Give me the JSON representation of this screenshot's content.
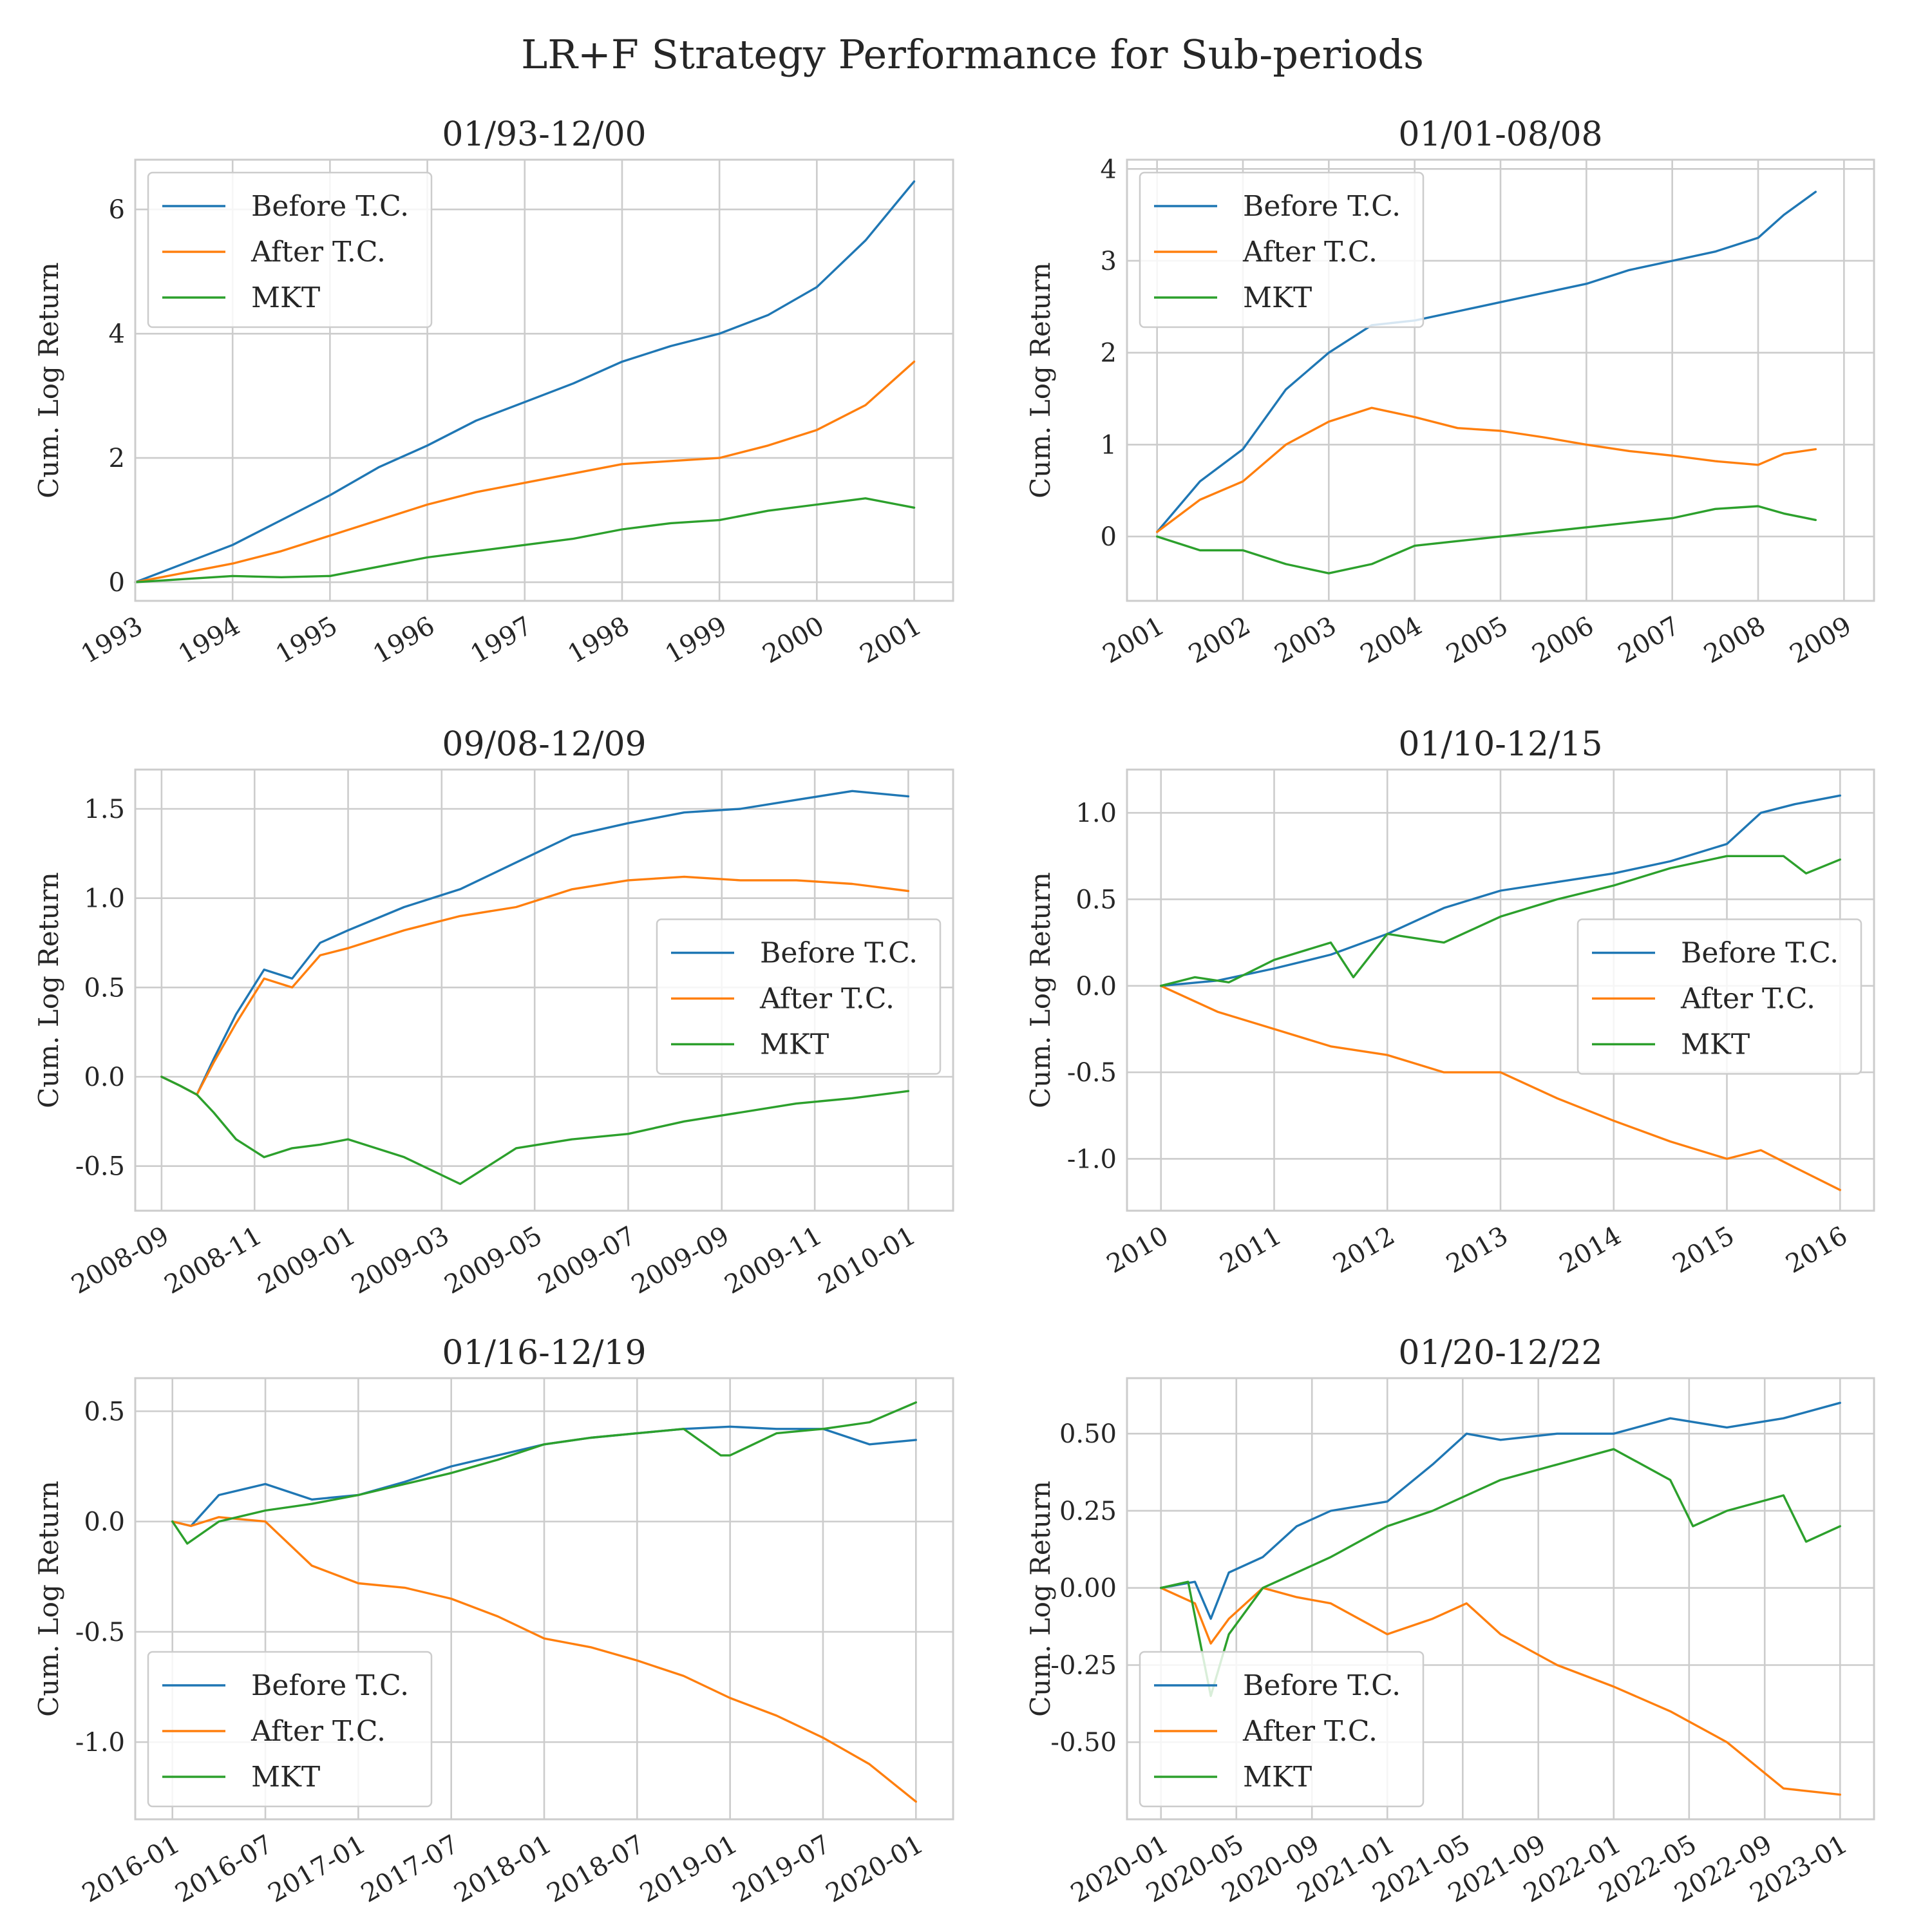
{
  "figure": {
    "title": "LR+F Strategy Performance for Sub-periods"
  },
  "colors": {
    "Before T.C.": "#1f77b4",
    "After T.C.": "#ff7f0e",
    "MKT": "#2ca02c"
  },
  "chart_data": [
    {
      "type": "line",
      "title": "01/93-12/00",
      "ylabel": "Cum. Log Return",
      "xlabel": "",
      "xlim": [
        1993.0,
        2001.4
      ],
      "ylim": [
        -0.3,
        6.8
      ],
      "xticks": [
        1993,
        1994,
        1995,
        1996,
        1997,
        1998,
        1999,
        2000,
        2001
      ],
      "xtick_labels": [
        "1993",
        "1994",
        "1995",
        "1996",
        "1997",
        "1998",
        "1999",
        "2000",
        "2001"
      ],
      "yticks": [
        0,
        2,
        4,
        6
      ],
      "ytick_labels": [
        "0",
        "2",
        "4",
        "6"
      ],
      "grid": true,
      "legend": {
        "loc": "upper-left",
        "labels": [
          "Before T.C.",
          "After T.C.",
          "MKT"
        ]
      },
      "series": [
        {
          "name": "Before T.C.",
          "x": [
            1993.0,
            1993.5,
            1994.0,
            1994.5,
            1995.0,
            1995.5,
            1996.0,
            1996.5,
            1997.0,
            1997.5,
            1998.0,
            1998.5,
            1999.0,
            1999.5,
            2000.0,
            2000.5,
            2001.0
          ],
          "y": [
            0.0,
            0.3,
            0.6,
            1.0,
            1.4,
            1.85,
            2.2,
            2.6,
            2.9,
            3.2,
            3.55,
            3.8,
            4.0,
            4.3,
            4.75,
            5.5,
            6.45
          ]
        },
        {
          "name": "After T.C.",
          "x": [
            1993.0,
            1993.5,
            1994.0,
            1994.5,
            1995.0,
            1995.5,
            1996.0,
            1996.5,
            1997.0,
            1997.5,
            1998.0,
            1998.5,
            1999.0,
            1999.5,
            2000.0,
            2000.5,
            2001.0
          ],
          "y": [
            0.0,
            0.15,
            0.3,
            0.5,
            0.75,
            1.0,
            1.25,
            1.45,
            1.6,
            1.75,
            1.9,
            1.95,
            2.0,
            2.2,
            2.45,
            2.85,
            3.55
          ]
        },
        {
          "name": "MKT",
          "x": [
            1993.0,
            1993.5,
            1994.0,
            1994.5,
            1995.0,
            1995.5,
            1996.0,
            1996.5,
            1997.0,
            1997.5,
            1998.0,
            1998.5,
            1999.0,
            1999.5,
            2000.0,
            2000.5,
            2001.0
          ],
          "y": [
            0.0,
            0.05,
            0.1,
            0.08,
            0.1,
            0.25,
            0.4,
            0.5,
            0.6,
            0.7,
            0.85,
            0.95,
            1.0,
            1.15,
            1.25,
            1.35,
            1.2
          ]
        }
      ]
    },
    {
      "type": "line",
      "title": "01/01-08/08",
      "ylabel": "Cum. Log Return",
      "xlabel": "",
      "xlim": [
        2000.65,
        2009.35
      ],
      "ylim": [
        -0.7,
        4.1
      ],
      "xticks": [
        2001,
        2002,
        2003,
        2004,
        2005,
        2006,
        2007,
        2008,
        2009
      ],
      "xtick_labels": [
        "2001",
        "2002",
        "2003",
        "2004",
        "2005",
        "2006",
        "2007",
        "2008",
        "2009"
      ],
      "yticks": [
        0,
        1,
        2,
        3,
        4
      ],
      "ytick_labels": [
        "0",
        "1",
        "2",
        "3",
        "4"
      ],
      "grid": true,
      "legend": {
        "loc": "upper-left",
        "labels": [
          "Before T.C.",
          "After T.C.",
          "MKT"
        ]
      },
      "series": [
        {
          "name": "Before T.C.",
          "x": [
            2001.0,
            2001.5,
            2002.0,
            2002.5,
            2003.0,
            2003.5,
            2004.0,
            2004.5,
            2005.0,
            2005.5,
            2006.0,
            2006.5,
            2007.0,
            2007.5,
            2008.0,
            2008.3,
            2008.67
          ],
          "y": [
            0.05,
            0.6,
            0.95,
            1.6,
            2.0,
            2.3,
            2.35,
            2.45,
            2.55,
            2.65,
            2.75,
            2.9,
            3.0,
            3.1,
            3.25,
            3.5,
            3.75
          ]
        },
        {
          "name": "After T.C.",
          "x": [
            2001.0,
            2001.5,
            2002.0,
            2002.5,
            2003.0,
            2003.5,
            2004.0,
            2004.5,
            2005.0,
            2005.5,
            2006.0,
            2006.5,
            2007.0,
            2007.5,
            2008.0,
            2008.3,
            2008.67
          ],
          "y": [
            0.05,
            0.4,
            0.6,
            1.0,
            1.25,
            1.4,
            1.3,
            1.18,
            1.15,
            1.08,
            1.0,
            0.93,
            0.88,
            0.82,
            0.78,
            0.9,
            0.95
          ]
        },
        {
          "name": "MKT",
          "x": [
            2001.0,
            2001.5,
            2002.0,
            2002.5,
            2003.0,
            2003.5,
            2004.0,
            2004.5,
            2005.0,
            2005.5,
            2006.0,
            2006.5,
            2007.0,
            2007.5,
            2008.0,
            2008.3,
            2008.67
          ],
          "y": [
            0.0,
            -0.15,
            -0.15,
            -0.3,
            -0.4,
            -0.3,
            -0.1,
            -0.05,
            0.0,
            0.05,
            0.1,
            0.15,
            0.2,
            0.3,
            0.33,
            0.25,
            0.18
          ]
        }
      ]
    },
    {
      "type": "line",
      "title": "09/08-12/09",
      "ylabel": "Cum. Log Return",
      "xlabel": "",
      "xlim": [
        2008.62,
        2010.08
      ],
      "ylim": [
        -0.75,
        1.72
      ],
      "xticks": [
        2008.667,
        2008.833,
        2009.0,
        2009.167,
        2009.333,
        2009.5,
        2009.667,
        2009.833,
        2010.0
      ],
      "xtick_labels": [
        "2008-09",
        "2008-11",
        "2009-01",
        "2009-03",
        "2009-05",
        "2009-07",
        "2009-09",
        "2009-11",
        "2010-01"
      ],
      "yticks": [
        -0.5,
        0.0,
        0.5,
        1.0,
        1.5
      ],
      "ytick_labels": [
        "-0.5",
        "0.0",
        "0.5",
        "1.0",
        "1.5"
      ],
      "grid": true,
      "legend": {
        "loc": "center-right",
        "labels": [
          "Before T.C.",
          "After T.C.",
          "MKT"
        ]
      },
      "series": [
        {
          "name": "Before T.C.",
          "x": [
            2008.667,
            2008.7,
            2008.73,
            2008.76,
            2008.8,
            2008.85,
            2008.9,
            2008.95,
            2009.0,
            2009.1,
            2009.2,
            2009.3,
            2009.4,
            2009.5,
            2009.6,
            2009.7,
            2009.8,
            2009.9,
            2010.0
          ],
          "y": [
            0.0,
            -0.05,
            -0.1,
            0.1,
            0.35,
            0.6,
            0.55,
            0.75,
            0.82,
            0.95,
            1.05,
            1.2,
            1.35,
            1.42,
            1.48,
            1.5,
            1.55,
            1.6,
            1.57
          ]
        },
        {
          "name": "After T.C.",
          "x": [
            2008.667,
            2008.7,
            2008.73,
            2008.76,
            2008.8,
            2008.85,
            2008.9,
            2008.95,
            2009.0,
            2009.1,
            2009.2,
            2009.3,
            2009.4,
            2009.5,
            2009.6,
            2009.7,
            2009.8,
            2009.9,
            2010.0
          ],
          "y": [
            0.0,
            -0.05,
            -0.1,
            0.08,
            0.3,
            0.55,
            0.5,
            0.68,
            0.72,
            0.82,
            0.9,
            0.95,
            1.05,
            1.1,
            1.12,
            1.1,
            1.1,
            1.08,
            1.04
          ]
        },
        {
          "name": "MKT",
          "x": [
            2008.667,
            2008.7,
            2008.73,
            2008.76,
            2008.8,
            2008.85,
            2008.9,
            2008.95,
            2009.0,
            2009.1,
            2009.2,
            2009.3,
            2009.4,
            2009.5,
            2009.6,
            2009.7,
            2009.8,
            2009.9,
            2010.0
          ],
          "y": [
            0.0,
            -0.05,
            -0.1,
            -0.2,
            -0.35,
            -0.45,
            -0.4,
            -0.38,
            -0.35,
            -0.45,
            -0.6,
            -0.4,
            -0.35,
            -0.32,
            -0.25,
            -0.2,
            -0.15,
            -0.12,
            -0.08
          ]
        }
      ]
    },
    {
      "type": "line",
      "title": "01/10-12/15",
      "ylabel": "Cum. Log Return",
      "xlabel": "",
      "xlim": [
        2009.7,
        2016.3
      ],
      "ylim": [
        -1.3,
        1.25
      ],
      "xticks": [
        2010,
        2011,
        2012,
        2013,
        2014,
        2015,
        2016
      ],
      "xtick_labels": [
        "2010",
        "2011",
        "2012",
        "2013",
        "2014",
        "2015",
        "2016"
      ],
      "yticks": [
        -1.0,
        -0.5,
        0.0,
        0.5,
        1.0
      ],
      "ytick_labels": [
        "-1.0",
        "-0.5",
        "0.0",
        "0.5",
        "1.0"
      ],
      "grid": true,
      "legend": {
        "loc": "center-right",
        "labels": [
          "Before T.C.",
          "After T.C.",
          "MKT"
        ]
      },
      "series": [
        {
          "name": "Before T.C.",
          "x": [
            2010.0,
            2010.5,
            2011.0,
            2011.5,
            2012.0,
            2012.5,
            2013.0,
            2013.5,
            2014.0,
            2014.5,
            2015.0,
            2015.3,
            2015.6,
            2016.0
          ],
          "y": [
            0.0,
            0.03,
            0.1,
            0.18,
            0.3,
            0.45,
            0.55,
            0.6,
            0.65,
            0.72,
            0.82,
            1.0,
            1.05,
            1.1
          ]
        },
        {
          "name": "After T.C.",
          "x": [
            2010.0,
            2010.5,
            2011.0,
            2011.5,
            2012.0,
            2012.5,
            2013.0,
            2013.5,
            2014.0,
            2014.5,
            2015.0,
            2015.3,
            2015.6,
            2016.0
          ],
          "y": [
            0.0,
            -0.15,
            -0.25,
            -0.35,
            -0.4,
            -0.5,
            -0.5,
            -0.65,
            -0.78,
            -0.9,
            -1.0,
            -0.95,
            -1.05,
            -1.18
          ]
        },
        {
          "name": "MKT",
          "x": [
            2010.0,
            2010.3,
            2010.6,
            2011.0,
            2011.5,
            2011.7,
            2012.0,
            2012.5,
            2013.0,
            2013.5,
            2014.0,
            2014.5,
            2015.0,
            2015.5,
            2015.7,
            2016.0
          ],
          "y": [
            0.0,
            0.05,
            0.02,
            0.15,
            0.25,
            0.05,
            0.3,
            0.25,
            0.4,
            0.5,
            0.58,
            0.68,
            0.75,
            0.75,
            0.65,
            0.73
          ]
        }
      ]
    },
    {
      "type": "line",
      "title": "01/16-12/19",
      "ylabel": "Cum. Log Return",
      "xlabel": "",
      "xlim": [
        2015.8,
        2020.2
      ],
      "ylim": [
        -1.35,
        0.65
      ],
      "xticks": [
        2016.0,
        2016.5,
        2017.0,
        2017.5,
        2018.0,
        2018.5,
        2019.0,
        2019.5,
        2020.0
      ],
      "xtick_labels": [
        "2016-01",
        "2016-07",
        "2017-01",
        "2017-07",
        "2018-01",
        "2018-07",
        "2019-01",
        "2019-07",
        "2020-01"
      ],
      "yticks": [
        -1.0,
        -0.5,
        0.0,
        0.5
      ],
      "ytick_labels": [
        "-1.0",
        "-0.5",
        "0.0",
        "0.5"
      ],
      "grid": true,
      "legend": {
        "loc": "lower-left",
        "labels": [
          "Before T.C.",
          "After T.C.",
          "MKT"
        ]
      },
      "series": [
        {
          "name": "Before T.C.",
          "x": [
            2016.0,
            2016.1,
            2016.25,
            2016.5,
            2016.75,
            2017.0,
            2017.25,
            2017.5,
            2017.75,
            2018.0,
            2018.25,
            2018.5,
            2018.75,
            2019.0,
            2019.25,
            2019.5,
            2019.75,
            2020.0
          ],
          "y": [
            0.0,
            -0.02,
            0.12,
            0.17,
            0.1,
            0.12,
            0.18,
            0.25,
            0.3,
            0.35,
            0.38,
            0.4,
            0.42,
            0.43,
            0.42,
            0.42,
            0.35,
            0.37
          ]
        },
        {
          "name": "After T.C.",
          "x": [
            2016.0,
            2016.1,
            2016.25,
            2016.5,
            2016.75,
            2017.0,
            2017.25,
            2017.5,
            2017.75,
            2018.0,
            2018.25,
            2018.5,
            2018.75,
            2019.0,
            2019.25,
            2019.5,
            2019.75,
            2020.0
          ],
          "y": [
            0.0,
            -0.02,
            0.02,
            0.0,
            -0.2,
            -0.28,
            -0.3,
            -0.35,
            -0.43,
            -0.53,
            -0.57,
            -0.63,
            -0.7,
            -0.8,
            -0.88,
            -0.98,
            -1.1,
            -1.27
          ]
        },
        {
          "name": "MKT",
          "x": [
            2016.0,
            2016.08,
            2016.25,
            2016.5,
            2016.75,
            2017.0,
            2017.25,
            2017.5,
            2017.75,
            2018.0,
            2018.25,
            2018.5,
            2018.75,
            2018.95,
            2019.0,
            2019.25,
            2019.5,
            2019.75,
            2020.0
          ],
          "y": [
            0.0,
            -0.1,
            0.0,
            0.05,
            0.08,
            0.12,
            0.17,
            0.22,
            0.28,
            0.35,
            0.38,
            0.4,
            0.42,
            0.3,
            0.3,
            0.4,
            0.42,
            0.45,
            0.54
          ]
        }
      ]
    },
    {
      "type": "line",
      "title": "01/20-12/22",
      "ylabel": "Cum. Log Return",
      "xlabel": "",
      "xlim": [
        2019.85,
        2023.15
      ],
      "ylim": [
        -0.75,
        0.68
      ],
      "xticks": [
        2020.0,
        2020.333,
        2020.667,
        2021.0,
        2021.333,
        2021.667,
        2022.0,
        2022.333,
        2022.667,
        2023.0
      ],
      "xtick_labels": [
        "2020-01",
        "2020-05",
        "2020-09",
        "2021-01",
        "2021-05",
        "2021-09",
        "2022-01",
        "2022-05",
        "2022-09",
        "2023-01"
      ],
      "yticks": [
        -0.5,
        -0.25,
        0.0,
        0.25,
        0.5
      ],
      "ytick_labels": [
        "-0.50",
        "-0.25",
        "0.00",
        "0.25",
        "0.50"
      ],
      "grid": true,
      "legend": {
        "loc": "lower-left",
        "labels": [
          "Before T.C.",
          "After T.C.",
          "MKT"
        ]
      },
      "series": [
        {
          "name": "Before T.C.",
          "x": [
            2020.0,
            2020.15,
            2020.22,
            2020.3,
            2020.45,
            2020.6,
            2020.75,
            2021.0,
            2021.2,
            2021.35,
            2021.5,
            2021.75,
            2022.0,
            2022.25,
            2022.5,
            2022.75,
            2023.0
          ],
          "y": [
            0.0,
            0.02,
            -0.1,
            0.05,
            0.1,
            0.2,
            0.25,
            0.28,
            0.4,
            0.5,
            0.48,
            0.5,
            0.5,
            0.55,
            0.52,
            0.55,
            0.6
          ]
        },
        {
          "name": "After T.C.",
          "x": [
            2020.0,
            2020.15,
            2020.22,
            2020.3,
            2020.45,
            2020.6,
            2020.75,
            2021.0,
            2021.2,
            2021.35,
            2021.5,
            2021.75,
            2022.0,
            2022.25,
            2022.5,
            2022.75,
            2023.0
          ],
          "y": [
            0.0,
            -0.05,
            -0.18,
            -0.1,
            0.0,
            -0.03,
            -0.05,
            -0.15,
            -0.1,
            -0.05,
            -0.15,
            -0.25,
            -0.32,
            -0.4,
            -0.5,
            -0.65,
            -0.67
          ]
        },
        {
          "name": "MKT",
          "x": [
            2020.0,
            2020.12,
            2020.22,
            2020.3,
            2020.45,
            2020.6,
            2020.75,
            2021.0,
            2021.2,
            2021.35,
            2021.5,
            2021.75,
            2022.0,
            2022.25,
            2022.35,
            2022.5,
            2022.75,
            2022.85,
            2023.0
          ],
          "y": [
            0.0,
            0.02,
            -0.35,
            -0.15,
            0.0,
            0.05,
            0.1,
            0.2,
            0.25,
            0.3,
            0.35,
            0.4,
            0.45,
            0.35,
            0.2,
            0.25,
            0.3,
            0.15,
            0.2
          ]
        }
      ]
    }
  ]
}
